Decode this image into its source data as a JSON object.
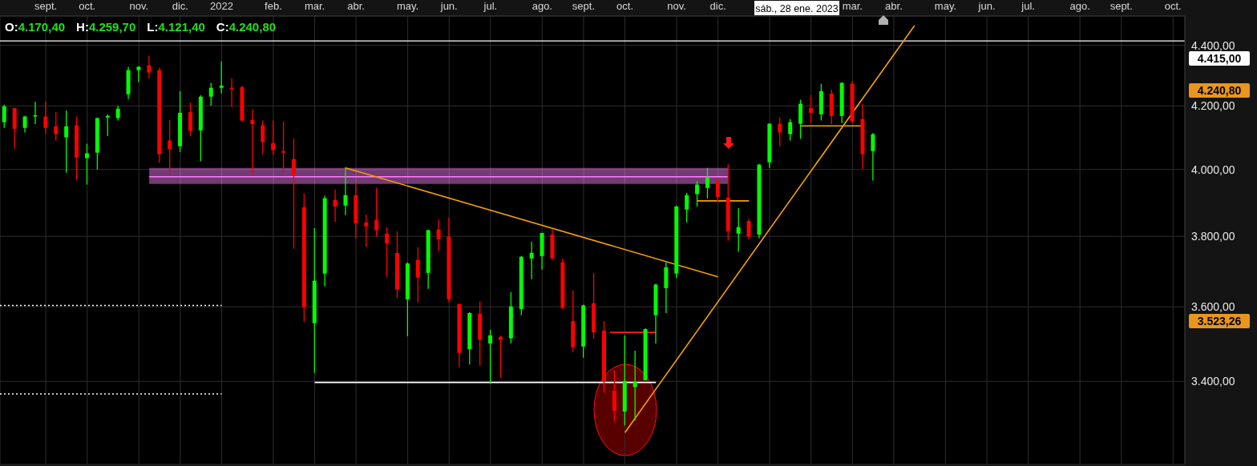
{
  "chart_data": {
    "type": "candlestick",
    "log": true,
    "grid": true,
    "legend": false,
    "xlim": [
      "2021-08-04",
      "2023-10-15"
    ],
    "xticks": [
      {
        "value": "2021-09-04",
        "label": "sept."
      },
      {
        "value": "2021-10-02",
        "label": "oct."
      },
      {
        "value": "2021-11-06",
        "label": "nov."
      },
      {
        "value": "2021-12-04",
        "label": "dic."
      },
      {
        "value": "2022-01-01",
        "label": "2022"
      },
      {
        "value": "2022-02-05",
        "label": "feb."
      },
      {
        "value": "2022-03-05",
        "label": "mar."
      },
      {
        "value": "2022-04-02",
        "label": "abr."
      },
      {
        "value": "2022-05-07",
        "label": "may."
      },
      {
        "value": "2022-06-04",
        "label": "jun."
      },
      {
        "value": "2022-07-02",
        "label": "jul."
      },
      {
        "value": "2022-08-06",
        "label": "ago."
      },
      {
        "value": "2022-09-03",
        "label": "sept."
      },
      {
        "value": "2022-10-01",
        "label": "oct."
      },
      {
        "value": "2022-11-05",
        "label": "nov."
      },
      {
        "value": "2022-12-03",
        "label": "dic."
      },
      {
        "value": "2023-01-07",
        "label": null
      },
      {
        "value": "2023-02-04",
        "label": null
      },
      {
        "value": "2023-03-04",
        "label": "mar."
      },
      {
        "value": "2023-04-01",
        "label": "abr."
      },
      {
        "value": "2023-05-06",
        "label": "may."
      },
      {
        "value": "2023-06-03",
        "label": "jun."
      },
      {
        "value": "2023-07-01",
        "label": "jul."
      },
      {
        "value": "2023-08-05",
        "label": "ago."
      },
      {
        "value": "2023-09-02",
        "label": "sept."
      },
      {
        "value": "2023-10-07",
        "label": "oct."
      }
    ],
    "ylim": [
      3190,
      4500
    ],
    "yticks": [
      {
        "value": 3400,
        "label": "3.400,00"
      },
      {
        "value": 3600,
        "label": "3.600,00"
      },
      {
        "value": 3800,
        "label": "3.800,00"
      },
      {
        "value": 4000,
        "label": "4.000,00"
      },
      {
        "value": 4200,
        "label": "4.200,00"
      },
      {
        "value": 4400,
        "label": "4.400,00"
      }
    ],
    "x": [
      "2021-08-07",
      "2021-08-14",
      "2021-08-21",
      "2021-08-28",
      "2021-09-04",
      "2021-09-11",
      "2021-09-18",
      "2021-09-25",
      "2021-10-02",
      "2021-10-09",
      "2021-10-16",
      "2021-10-23",
      "2021-10-30",
      "2021-11-06",
      "2021-11-13",
      "2021-11-20",
      "2021-11-27",
      "2021-12-04",
      "2021-12-11",
      "2021-12-18",
      "2021-12-25",
      "2022-01-01",
      "2022-01-08",
      "2022-01-15",
      "2022-01-22",
      "2022-01-29",
      "2022-02-05",
      "2022-02-12",
      "2022-02-19",
      "2022-02-26",
      "2022-03-05",
      "2022-03-12",
      "2022-03-19",
      "2022-03-26",
      "2022-04-02",
      "2022-04-09",
      "2022-04-16",
      "2022-04-23",
      "2022-04-30",
      "2022-05-07",
      "2022-05-14",
      "2022-05-21",
      "2022-05-28",
      "2022-06-04",
      "2022-06-11",
      "2022-06-18",
      "2022-06-25",
      "2022-07-02",
      "2022-07-09",
      "2022-07-16",
      "2022-07-23",
      "2022-07-30",
      "2022-08-06",
      "2022-08-13",
      "2022-08-20",
      "2022-08-27",
      "2022-09-03",
      "2022-09-10",
      "2022-09-17",
      "2022-09-24",
      "2022-10-01",
      "2022-10-08",
      "2022-10-15",
      "2022-10-22",
      "2022-10-29",
      "2022-11-05",
      "2022-11-12",
      "2022-11-19",
      "2022-11-26",
      "2022-12-03",
      "2022-12-10",
      "2022-12-17",
      "2022-12-24",
      "2022-12-31",
      "2023-01-07",
      "2023-01-14",
      "2023-01-21",
      "2023-01-28",
      "2023-02-04",
      "2023-02-11",
      "2023-02-18",
      "2023-02-25",
      "2023-03-04",
      "2023-03-11",
      "2023-03-18"
    ],
    "ohlc": [
      [
        4148,
        4204,
        4130,
        4199
      ],
      [
        4193,
        4193,
        4064,
        4127
      ],
      [
        4130,
        4168,
        4115,
        4166
      ],
      [
        4168,
        4214,
        4142,
        4170
      ],
      [
        4166,
        4214,
        4110,
        4130
      ],
      [
        4135,
        4180,
        4090,
        4110
      ],
      [
        4100,
        4186,
        3990,
        4135
      ],
      [
        4138,
        4166,
        3968,
        4037
      ],
      [
        4035,
        4080,
        3954,
        4050
      ],
      [
        4052,
        4163,
        4000,
        4161
      ],
      [
        4163,
        4173,
        4104,
        4168
      ],
      [
        4161,
        4201,
        4153,
        4191
      ],
      [
        4238,
        4328,
        4222,
        4317
      ],
      [
        4317,
        4330,
        4277,
        4328
      ],
      [
        4333,
        4365,
        4290,
        4309
      ],
      [
        4317,
        4325,
        4020,
        4047
      ],
      [
        4090,
        4155,
        3985,
        4063
      ],
      [
        4072,
        4248,
        4054,
        4178
      ],
      [
        4180,
        4211,
        4104,
        4120
      ],
      [
        4122,
        4235,
        4025,
        4230
      ],
      [
        4230,
        4275,
        4201,
        4259
      ],
      [
        4259,
        4346,
        4240,
        4266
      ],
      [
        4259,
        4290,
        4196,
        4256
      ],
      [
        4261,
        4266,
        4150,
        4153
      ],
      [
        4155,
        4188,
        3988,
        4142
      ],
      [
        4138,
        4153,
        4047,
        4085
      ],
      [
        4082,
        4153,
        4045,
        4060
      ],
      [
        4057,
        4150,
        3990,
        4052
      ],
      [
        4032,
        4097,
        3764,
        3983
      ],
      [
        3886,
        3927,
        3559,
        3599
      ],
      [
        3555,
        3824,
        3422,
        3673
      ],
      [
        3693,
        3920,
        3657,
        3913
      ],
      [
        3908,
        3939,
        3843,
        3888
      ],
      [
        3891,
        4007,
        3862,
        3922
      ],
      [
        3922,
        3958,
        3794,
        3838
      ],
      [
        3841,
        3864,
        3769,
        3829
      ],
      [
        3848,
        3944,
        3799,
        3818
      ],
      [
        3808,
        3827,
        3682,
        3780
      ],
      [
        3752,
        3815,
        3624,
        3648
      ],
      [
        3621,
        3725,
        3520,
        3722
      ],
      [
        3732,
        3769,
        3612,
        3682
      ],
      [
        3695,
        3820,
        3650,
        3818
      ],
      [
        3820,
        3850,
        3757,
        3792
      ],
      [
        3799,
        3855,
        3612,
        3621
      ],
      [
        3608,
        3608,
        3437,
        3475
      ],
      [
        3485,
        3585,
        3444,
        3583
      ],
      [
        3581,
        3615,
        3441,
        3510
      ],
      [
        3500,
        3537,
        3393,
        3522
      ],
      [
        3518,
        3522,
        3410,
        3510
      ],
      [
        3514,
        3641,
        3500,
        3601
      ],
      [
        3594,
        3743,
        3577,
        3741
      ],
      [
        3736,
        3785,
        3677,
        3752
      ],
      [
        3743,
        3810,
        3704,
        3810
      ],
      [
        3805,
        3820,
        3732,
        3736
      ],
      [
        3725,
        3736,
        3594,
        3597
      ],
      [
        3561,
        3645,
        3477,
        3490
      ],
      [
        3492,
        3606,
        3462,
        3604
      ],
      [
        3610,
        3695,
        3512,
        3530
      ],
      [
        3535,
        3561,
        3371,
        3401
      ],
      [
        3375,
        3429,
        3297,
        3324
      ],
      [
        3322,
        3522,
        3287,
        3401
      ],
      [
        3385,
        3481,
        3299,
        3399
      ],
      [
        3403,
        3541,
        3403,
        3539
      ],
      [
        3577,
        3664,
        3500,
        3662
      ],
      [
        3652,
        3725,
        3583,
        3711
      ],
      [
        3693,
        3891,
        3680,
        3888
      ],
      [
        3879,
        3929,
        3841,
        3922
      ],
      [
        3925,
        3964,
        3888,
        3954
      ],
      [
        3944,
        4005,
        3912,
        3976
      ],
      [
        3966,
        3973,
        3898,
        3917
      ],
      [
        3915,
        4017,
        3787,
        3815
      ],
      [
        3808,
        3883,
        3755,
        3827
      ],
      [
        3845,
        3852,
        3792,
        3799
      ],
      [
        3805,
        4017,
        3794,
        4015
      ],
      [
        4022,
        4145,
        4005,
        4143
      ],
      [
        4143,
        4163,
        4072,
        4115
      ],
      [
        4110,
        4158,
        4090,
        4148
      ],
      [
        4143,
        4220,
        4095,
        4207
      ],
      [
        4193,
        4235,
        4145,
        4178
      ],
      [
        4173,
        4272,
        4153,
        4248
      ],
      [
        4240,
        4253,
        4142,
        4168
      ],
      [
        4168,
        4277,
        4145,
        4275
      ],
      [
        4272,
        4280,
        4145,
        4150
      ],
      [
        4158,
        4207,
        4002,
        4047
      ],
      [
        4057,
        4113,
        3966,
        4110
      ]
    ],
    "colors": [
      "#00ff00",
      "#ff0000",
      "#00ff00",
      "#00ff00",
      "#ff0000",
      "#ff0000",
      "#00ff00",
      "#ff0000",
      "#00ff00",
      "#00ff00",
      "#00ff00",
      "#00ff00",
      "#00ff00",
      "#00ff00",
      "#ff0000",
      "#ff0000",
      "#ff0000",
      "#00ff00",
      "#ff0000",
      "#00ff00",
      "#00ff00",
      "#00ff00",
      "#ff0000",
      "#ff0000",
      "#ff0000",
      "#ff0000",
      "#ff0000",
      "#ff0000",
      "#ff0000",
      "#ff0000",
      "#00ff00",
      "#00ff00",
      "#ff0000",
      "#00ff00",
      "#ff0000",
      "#ff0000",
      "#ff0000",
      "#ff0000",
      "#ff0000",
      "#00ff00",
      "#ff0000",
      "#00ff00",
      "#ff0000",
      "#ff0000",
      "#ff0000",
      "#00ff00",
      "#ff0000",
      "#00ff00",
      "#ff0000",
      "#00ff00",
      "#00ff00",
      "#00ff00",
      "#00ff00",
      "#ff0000",
      "#ff0000",
      "#ff0000",
      "#00ff00",
      "#ff0000",
      "#ff0000",
      "#ff0000",
      "#00ff00",
      "#00ff00",
      "#00ff00",
      "#00ff00",
      "#00ff00",
      "#00ff00",
      "#00ff00",
      "#00ff00",
      "#00ff00",
      "#ff0000",
      "#ff0000",
      "#00ff00",
      "#ff0000",
      "#00ff00",
      "#00ff00",
      "#ff0000",
      "#00ff00",
      "#00ff00",
      "#ff0000",
      "#00ff00",
      "#ff0000",
      "#00ff00",
      "#ff0000",
      "#ff0000",
      "#00ff00"
    ],
    "series": [
      {
        "type": "line",
        "x": [
          "2021-11-13",
          "2022-12-10"
        ],
        "values": [
          3978,
          3978
        ],
        "lower": [
          3956,
          3956
        ],
        "upper": [
          4005,
          4005
        ],
        "color": "#ff80ff",
        "line_style": "solid"
      },
      {
        "type": "line",
        "x": [
          "2021-08-04",
          "2022-01-01"
        ],
        "values": [
          3604,
          3604
        ],
        "color": "#ffffff",
        "line_style": "dotted"
      },
      {
        "type": "line",
        "x": [
          "2021-08-04",
          "2022-01-01"
        ],
        "values": [
          3367,
          3367
        ],
        "color": "#ffffff",
        "line_style": "dotted"
      },
      {
        "type": "line",
        "x": [
          "2022-03-05",
          "2022-10-22"
        ],
        "values": [
          3397,
          3397
        ],
        "color": "#ffffff",
        "line_style": "solid"
      },
      {
        "type": "line",
        "x": [
          "2022-09-21",
          "2022-10-22"
        ],
        "values": [
          3530,
          3530
        ],
        "color": "#ff2020",
        "line_style": "solid"
      },
      {
        "type": "line",
        "x": [
          "2022-11-19",
          "2022-12-24"
        ],
        "values": [
          3905,
          3905
        ],
        "color": "#f5a000",
        "line_style": "solid"
      },
      {
        "type": "line",
        "x": [
          "2023-01-28",
          "2023-03-11"
        ],
        "values": [
          4136,
          4136
        ],
        "color": "#f5a000",
        "line_style": "solid"
      },
      {
        "type": "line",
        "x": [
          "2022-03-26",
          "2022-12-03"
        ],
        "values": [
          4005,
          3684
        ],
        "color": "#f5a000",
        "line_style": "solid"
      },
      {
        "type": "line",
        "x": [
          "2022-10-01",
          "2023-04-15"
        ],
        "values": [
          3269,
          4467
        ],
        "color": "#f5a000",
        "line_style": "solid"
      }
    ],
    "ref_lines": [
      {
        "axis": "y",
        "value": 4415,
        "label": "4.415,00",
        "color": "#ffffff"
      }
    ],
    "annotations": [
      "O:4.170,40",
      "H:4.259,70",
      "L:4.121,40",
      "C:4.240,80",
      "sáb., 28 ene. 2023",
      "4.240,80",
      "3.523,26"
    ]
  }
}
